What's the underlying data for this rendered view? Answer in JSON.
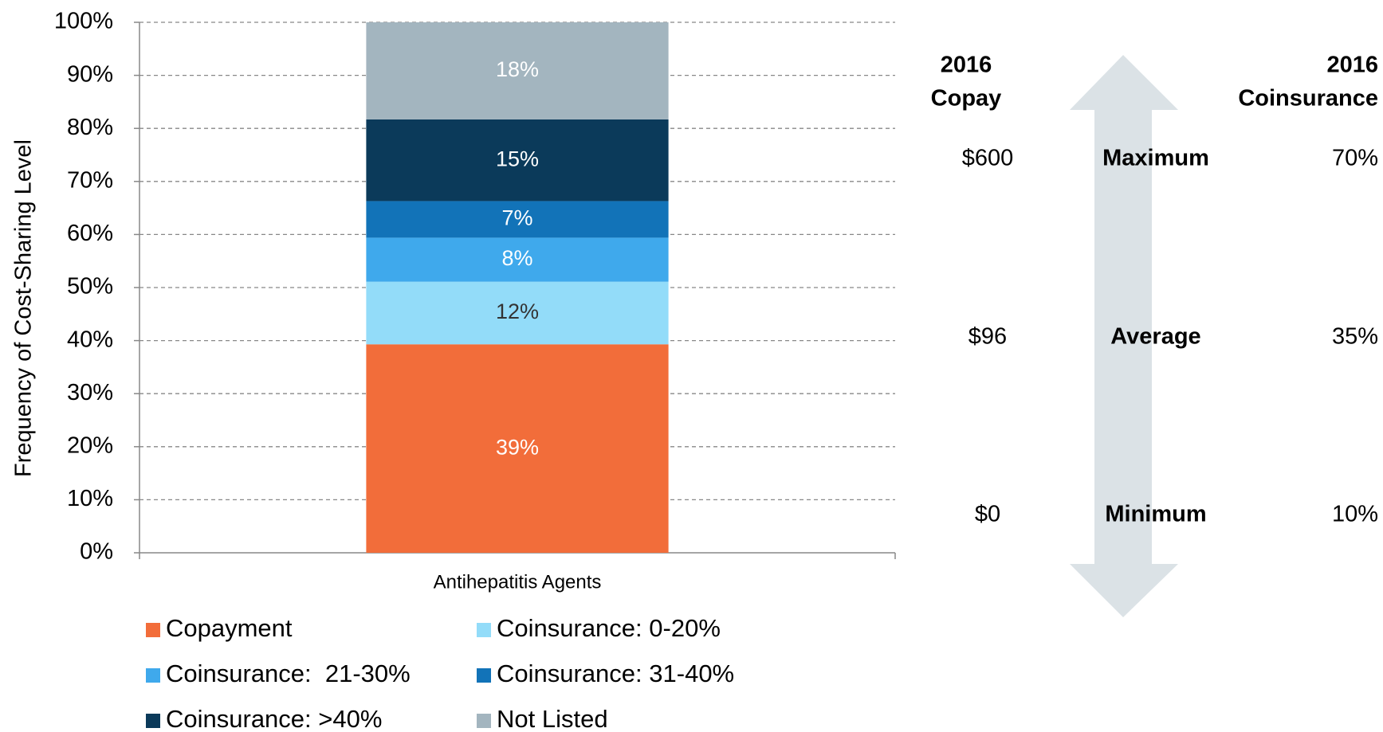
{
  "chart_data": {
    "type": "stacked_bar",
    "y_label": "Frequency of Cost-Sharing Level",
    "categories": [
      "Antihepatitis Agents"
    ],
    "series": [
      {
        "name": "Copayment",
        "color": "#f26d3a",
        "values": [
          39.3
        ],
        "value_labels": [
          "39%"
        ]
      },
      {
        "name": "Coinsurance: 0-20%",
        "color": "#93dcf9",
        "values": [
          11.8
        ],
        "value_labels": [
          "12%"
        ]
      },
      {
        "name": "Coinsurance:  21-30%",
        "color": "#3fa9ec",
        "values": [
          8.3
        ],
        "value_labels": [
          "8%"
        ]
      },
      {
        "name": "Coinsurance: 31-40%",
        "color": "#1273b8",
        "values": [
          6.9
        ],
        "value_labels": [
          "7%"
        ]
      },
      {
        "name": "Coinsurance: >40%",
        "color": "#0b3a5a",
        "values": [
          15.4
        ],
        "value_labels": [
          "15%"
        ]
      },
      {
        "name": "Not Listed",
        "color": "#a3b5bf",
        "values": [
          18.3
        ],
        "value_labels": [
          "18%"
        ]
      }
    ],
    "ylim": [
      0,
      100
    ],
    "yticks": [
      {
        "value": 0,
        "label": "0%"
      },
      {
        "value": 10,
        "label": "10%"
      },
      {
        "value": 20,
        "label": "20%"
      },
      {
        "value": 30,
        "label": "30%"
      },
      {
        "value": 40,
        "label": "40%"
      },
      {
        "value": 50,
        "label": "50%"
      },
      {
        "value": 60,
        "label": "60%"
      },
      {
        "value": 70,
        "label": "70%"
      },
      {
        "value": 80,
        "label": "80%"
      },
      {
        "value": 90,
        "label": "90%"
      },
      {
        "value": 100,
        "label": "100%"
      }
    ],
    "grid": true,
    "legend": "bottom"
  },
  "summary": {
    "copay_header": [
      "2016",
      "Copay"
    ],
    "coinsurance_header": [
      "2016",
      "Coinsurance"
    ],
    "rows": [
      {
        "label": "Maximum",
        "copay": "$600",
        "coinsurance": "70%"
      },
      {
        "label": "Average",
        "copay": "$96",
        "coinsurance": "35%"
      },
      {
        "label": "Minimum",
        "copay": "$0",
        "coinsurance": "10%"
      }
    ]
  }
}
